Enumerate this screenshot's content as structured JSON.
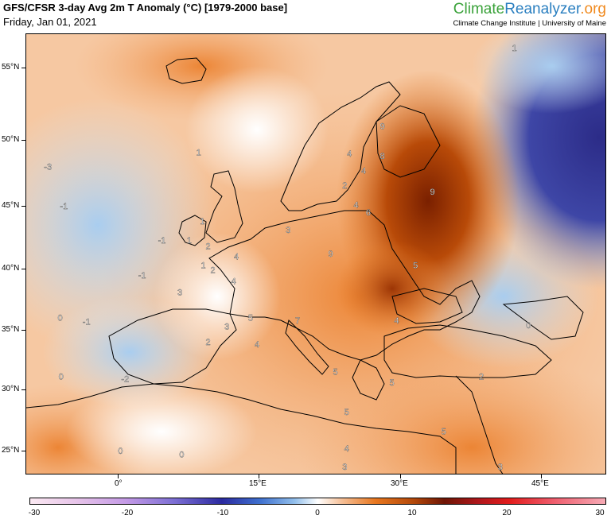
{
  "header": {
    "title": "GFS/CFSR 3-day Avg 2m T Anomaly (°C) [1979-2000 base]",
    "date": "Friday, Jan 01, 2021"
  },
  "brand": {
    "part1": "Climate",
    "part2": "Reanalyzer",
    "part3": ".org",
    "subtitle": "Climate Change Institute | University of Maine"
  },
  "map": {
    "lat_labels": [
      "55°N",
      "50°N",
      "45°N",
      "40°N",
      "35°N",
      "30°N",
      "25°N"
    ],
    "lon_labels": [
      "0°",
      "15°E",
      "30°E",
      "45°E"
    ],
    "contour_labels": [
      {
        "text": "-3",
        "lon": -22,
        "lat": 55.5
      },
      {
        "text": "1",
        "lon": 42,
        "lat": 56.2
      },
      {
        "text": "9",
        "lon": 28,
        "lat": 50.8
      },
      {
        "text": "1",
        "lon": 8.5,
        "lat": 48.9
      },
      {
        "text": "4",
        "lon": 24.5,
        "lat": 48.8
      },
      {
        "text": "8",
        "lon": 28,
        "lat": 48.6
      },
      {
        "text": "-3",
        "lon": -7.5,
        "lat": 47.8
      },
      {
        "text": "4",
        "lon": 26,
        "lat": 47.5
      },
      {
        "text": "2",
        "lon": 24,
        "lat": 46.4
      },
      {
        "text": "9",
        "lon": 33.3,
        "lat": 45.9
      },
      {
        "text": "-1",
        "lon": -5.8,
        "lat": 44.8
      },
      {
        "text": "4",
        "lon": 25.2,
        "lat": 44.9
      },
      {
        "text": "6",
        "lon": 26.5,
        "lat": 44.3
      },
      {
        "text": "1",
        "lon": 8.9,
        "lat": 43.6
      },
      {
        "text": "3",
        "lon": 18,
        "lat": 42.9
      },
      {
        "text": "-1",
        "lon": 4.6,
        "lat": 42.1
      },
      {
        "text": "1",
        "lon": 7.5,
        "lat": 42.1
      },
      {
        "text": "2",
        "lon": 9.5,
        "lat": 41.6
      },
      {
        "text": "4",
        "lon": 12.5,
        "lat": 40.8
      },
      {
        "text": "9",
        "lon": 22.5,
        "lat": 41.0
      },
      {
        "text": "1",
        "lon": 9,
        "lat": 40.1
      },
      {
        "text": "5",
        "lon": 31.5,
        "lat": 40.1
      },
      {
        "text": "2",
        "lon": 10,
        "lat": 39.7
      },
      {
        "text": "-1",
        "lon": 2.5,
        "lat": 39.3
      },
      {
        "text": "4",
        "lon": 12.2,
        "lat": 38.8
      },
      {
        "text": "3",
        "lon": 6.5,
        "lat": 37.9
      },
      {
        "text": "0",
        "lon": -6.2,
        "lat": 35.8
      },
      {
        "text": "-1",
        "lon": -3.4,
        "lat": 35.5
      },
      {
        "text": "5",
        "lon": 14,
        "lat": 35.8
      },
      {
        "text": "3",
        "lon": 11.5,
        "lat": 35.1
      },
      {
        "text": "7",
        "lon": 19,
        "lat": 35.6
      },
      {
        "text": "4",
        "lon": 29.5,
        "lat": 35.6
      },
      {
        "text": "0",
        "lon": 43.5,
        "lat": 35.2
      },
      {
        "text": "2",
        "lon": 9.5,
        "lat": 33.8
      },
      {
        "text": "4",
        "lon": 14.7,
        "lat": 33.6
      },
      {
        "text": "5",
        "lon": 23,
        "lat": 31.3
      },
      {
        "text": "2",
        "lon": 38.5,
        "lat": 30.9
      },
      {
        "text": "0",
        "lon": -6.1,
        "lat": 30.9
      },
      {
        "text": "-2",
        "lon": 0.7,
        "lat": 30.7
      },
      {
        "text": "5",
        "lon": 29,
        "lat": 30.4
      },
      {
        "text": "5",
        "lon": 24.2,
        "lat": 28.0
      },
      {
        "text": "5",
        "lon": 34.5,
        "lat": 26.4
      },
      {
        "text": "0",
        "lon": 0.2,
        "lat": 24.8
      },
      {
        "text": "0",
        "lon": 6.7,
        "lat": 24.5
      },
      {
        "text": "4",
        "lon": 24.2,
        "lat": 25.0
      },
      {
        "text": "3",
        "lon": 24,
        "lat": 23.5
      },
      {
        "text": "3",
        "lon": 40.5,
        "lat": 23.5
      }
    ]
  },
  "colorbar": {
    "labels": [
      "-30",
      "-20",
      "-10",
      "0",
      "10",
      "20",
      "30"
    ]
  },
  "colors": {
    "warm": "#e8771f",
    "hot": "#8a2a00",
    "cold": "#33338f",
    "cool": "#9cc4ea",
    "neutral": "#ffffff"
  }
}
